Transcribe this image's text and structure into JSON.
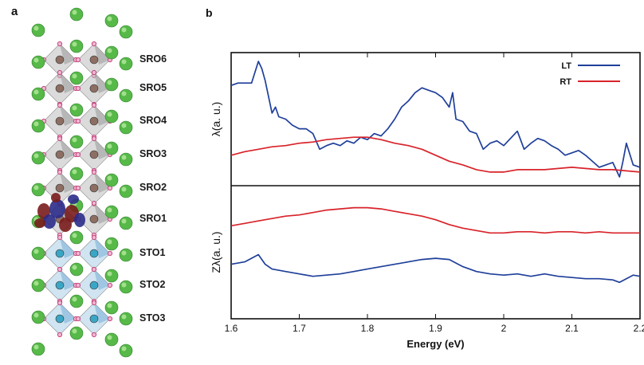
{
  "panel_a": {
    "label": "a",
    "layers": [
      "SRO6",
      "SRO5",
      "SRO4",
      "SRO3",
      "SRO2",
      "SRO1",
      "STO1",
      "STO2",
      "STO3"
    ]
  },
  "panel_b": {
    "label": "b",
    "colors": {
      "LT": "#1f3f9a",
      "RT": "#d8232a"
    }
  },
  "chart_data": {
    "type": "line",
    "xlabel": "Energy (eV)",
    "xlim": [
      1.6,
      2.2
    ],
    "x_ticks": [
      "1.6",
      "1.7",
      "1.8",
      "1.9",
      "2",
      "2.1",
      "2.2"
    ],
    "legend": [
      "LT",
      "RT"
    ],
    "legend_position": "top-right",
    "panels": [
      {
        "ylabel": "λ(a. u.)",
        "series": [
          {
            "name": "LT",
            "x": [
              1.6,
              1.61,
              1.62,
              1.63,
              1.64,
              1.645,
              1.65,
              1.66,
              1.665,
              1.67,
              1.68,
              1.69,
              1.7,
              1.71,
              1.72,
              1.73,
              1.74,
              1.75,
              1.76,
              1.77,
              1.78,
              1.79,
              1.8,
              1.81,
              1.82,
              1.83,
              1.84,
              1.85,
              1.86,
              1.87,
              1.88,
              1.89,
              1.9,
              1.91,
              1.92,
              1.925,
              1.93,
              1.94,
              1.95,
              1.96,
              1.97,
              1.98,
              1.99,
              2.0,
              2.01,
              2.02,
              2.03,
              2.04,
              2.05,
              2.06,
              2.07,
              2.08,
              2.09,
              2.1,
              2.11,
              2.12,
              2.13,
              2.14,
              2.15,
              2.16,
              2.17,
              2.175,
              2.18,
              2.19,
              2.2
            ],
            "y": [
              0.78,
              0.8,
              0.8,
              0.8,
              0.98,
              0.92,
              0.82,
              0.55,
              0.6,
              0.52,
              0.5,
              0.45,
              0.42,
              0.42,
              0.38,
              0.25,
              0.28,
              0.3,
              0.28,
              0.32,
              0.3,
              0.35,
              0.33,
              0.38,
              0.36,
              0.42,
              0.5,
              0.6,
              0.65,
              0.72,
              0.76,
              0.74,
              0.72,
              0.68,
              0.6,
              0.72,
              0.5,
              0.48,
              0.4,
              0.38,
              0.25,
              0.3,
              0.32,
              0.28,
              0.34,
              0.4,
              0.25,
              0.3,
              0.34,
              0.32,
              0.28,
              0.25,
              0.2,
              0.22,
              0.24,
              0.2,
              0.15,
              0.1,
              0.12,
              0.14,
              0.02,
              0.15,
              0.3,
              0.12,
              0.1
            ]
          },
          {
            "name": "RT",
            "x": [
              1.6,
              1.62,
              1.64,
              1.66,
              1.68,
              1.7,
              1.72,
              1.74,
              1.76,
              1.78,
              1.8,
              1.82,
              1.84,
              1.86,
              1.88,
              1.9,
              1.92,
              1.94,
              1.96,
              1.98,
              2.0,
              2.02,
              2.04,
              2.06,
              2.08,
              2.1,
              2.12,
              2.14,
              2.16,
              2.18,
              2.2
            ],
            "y": [
              0.2,
              0.23,
              0.25,
              0.27,
              0.28,
              0.3,
              0.31,
              0.33,
              0.34,
              0.35,
              0.35,
              0.33,
              0.3,
              0.28,
              0.25,
              0.2,
              0.15,
              0.12,
              0.08,
              0.06,
              0.06,
              0.08,
              0.08,
              0.08,
              0.09,
              0.1,
              0.09,
              0.08,
              0.08,
              0.07,
              0.06
            ]
          }
        ]
      },
      {
        "ylabel": "Zλ(a. u.)",
        "series": [
          {
            "name": "LT",
            "x": [
              1.6,
              1.62,
              1.64,
              1.65,
              1.66,
              1.68,
              1.7,
              1.72,
              1.74,
              1.76,
              1.78,
              1.8,
              1.82,
              1.84,
              1.86,
              1.88,
              1.9,
              1.92,
              1.94,
              1.96,
              1.98,
              2.0,
              2.02,
              2.04,
              2.06,
              2.08,
              2.1,
              2.12,
              2.14,
              2.16,
              2.17,
              2.18,
              2.19,
              2.2
            ],
            "y": [
              0.4,
              0.42,
              0.48,
              0.4,
              0.36,
              0.34,
              0.32,
              0.3,
              0.31,
              0.32,
              0.34,
              0.36,
              0.38,
              0.4,
              0.42,
              0.44,
              0.45,
              0.44,
              0.38,
              0.34,
              0.32,
              0.31,
              0.32,
              0.3,
              0.32,
              0.3,
              0.29,
              0.28,
              0.28,
              0.27,
              0.25,
              0.28,
              0.31,
              0.3
            ]
          },
          {
            "name": "RT",
            "x": [
              1.6,
              1.62,
              1.64,
              1.66,
              1.68,
              1.7,
              1.72,
              1.74,
              1.76,
              1.78,
              1.8,
              1.82,
              1.84,
              1.86,
              1.88,
              1.9,
              1.92,
              1.94,
              1.96,
              1.98,
              2.0,
              2.02,
              2.04,
              2.06,
              2.08,
              2.1,
              2.12,
              2.14,
              2.16,
              2.18,
              2.2
            ],
            "y": [
              0.72,
              0.74,
              0.76,
              0.78,
              0.8,
              0.81,
              0.83,
              0.85,
              0.86,
              0.87,
              0.87,
              0.86,
              0.84,
              0.82,
              0.8,
              0.77,
              0.73,
              0.7,
              0.68,
              0.66,
              0.66,
              0.67,
              0.67,
              0.66,
              0.67,
              0.67,
              0.66,
              0.67,
              0.66,
              0.66,
              0.66
            ]
          }
        ]
      }
    ]
  }
}
